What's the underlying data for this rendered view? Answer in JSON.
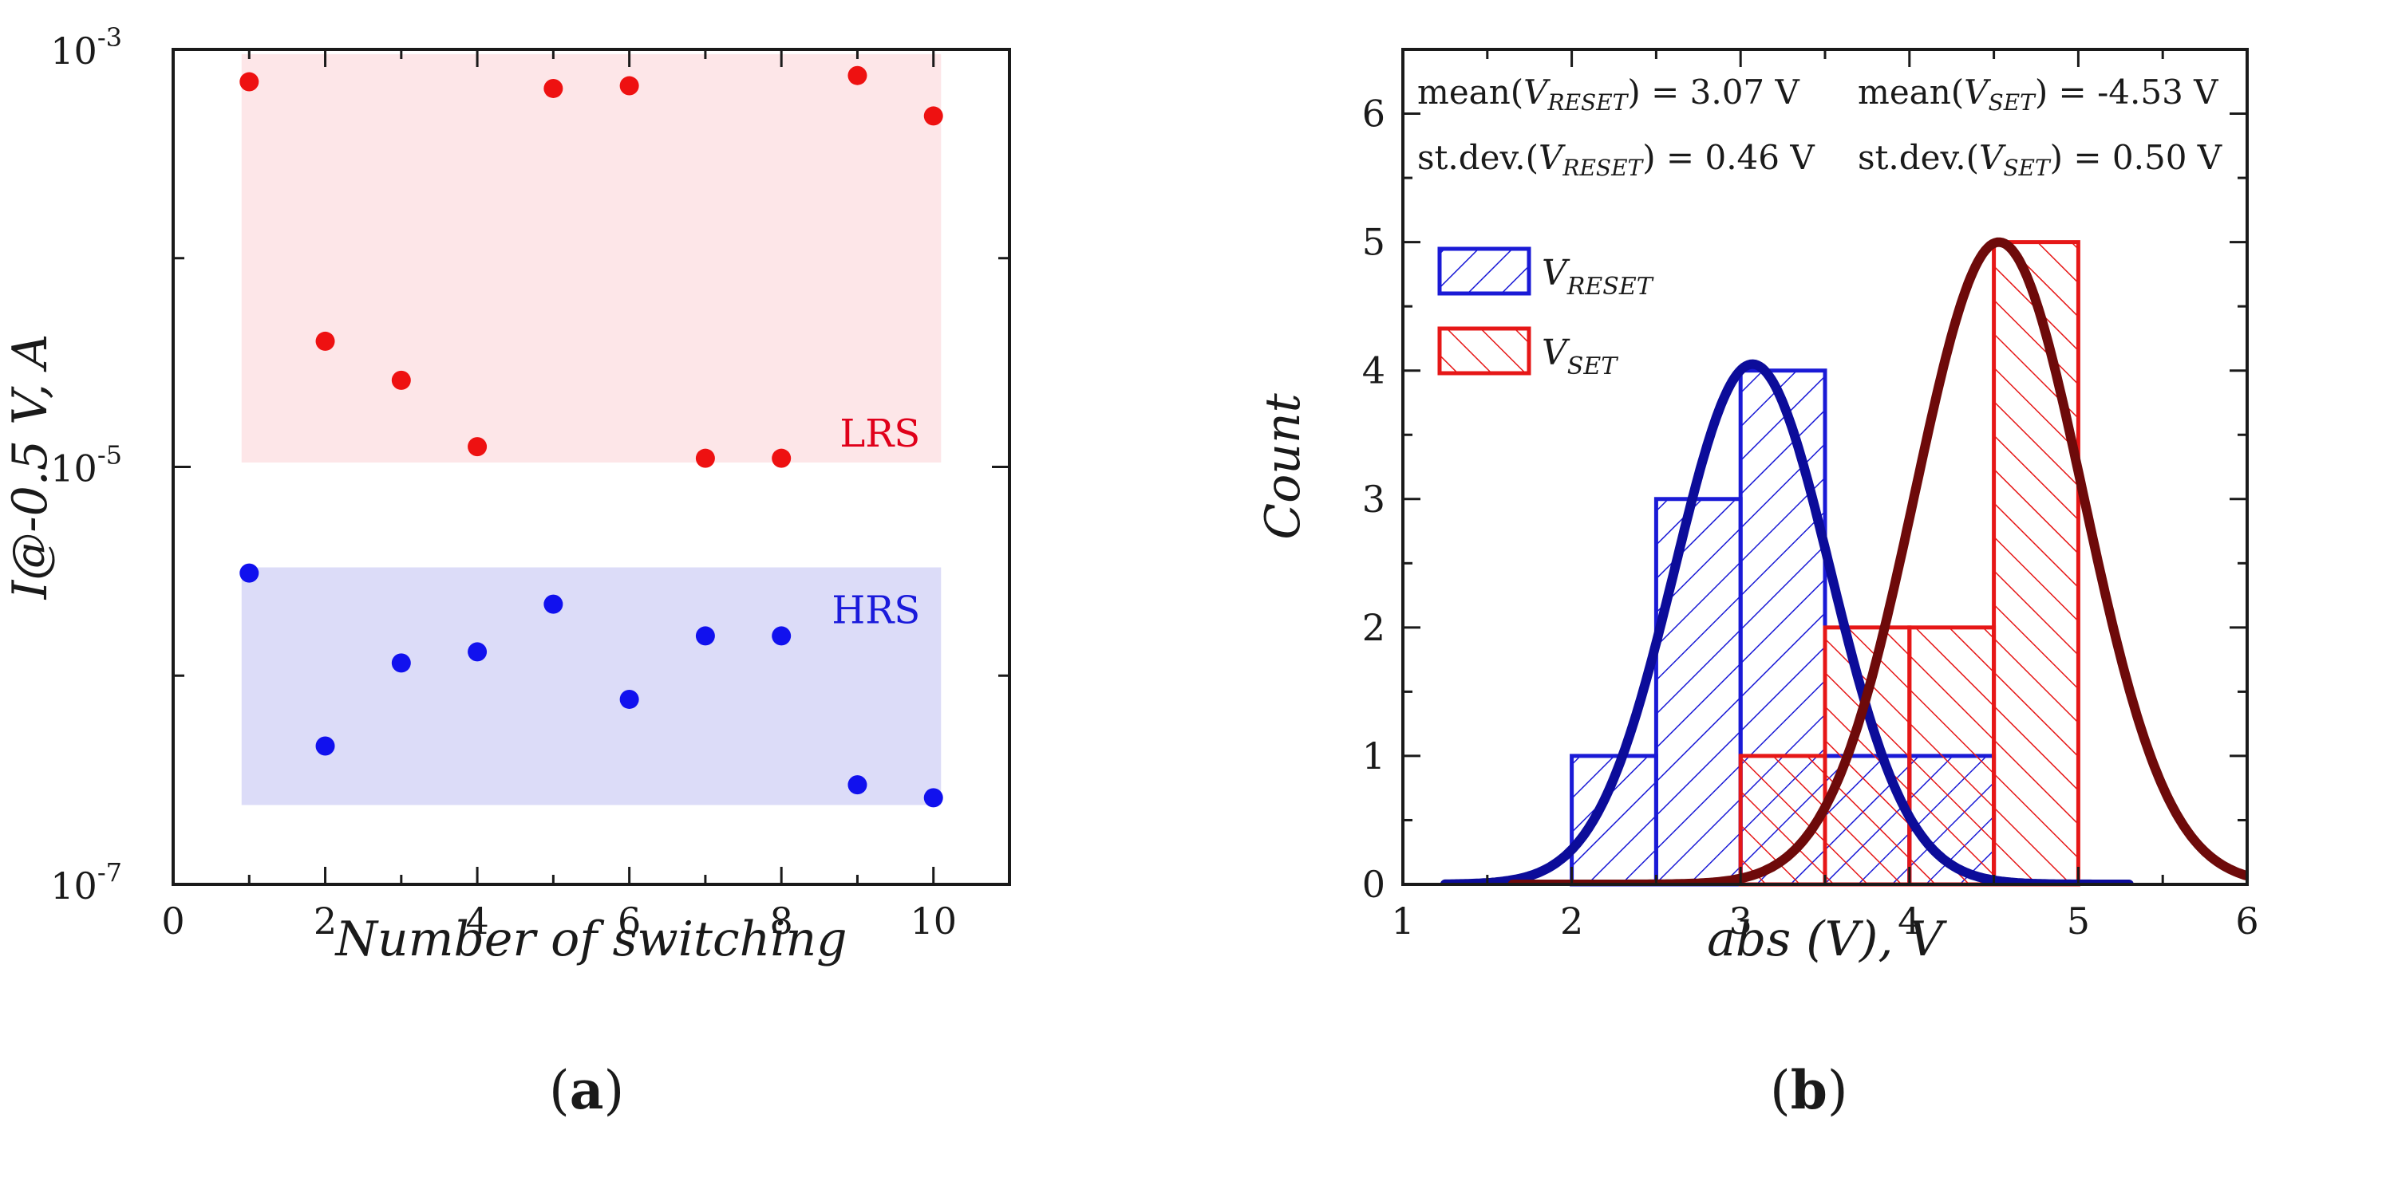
{
  "chart_data": [
    {
      "type": "scatter",
      "panel_label": "(a)",
      "panel_letter": "a",
      "xlabel": "Number of switching",
      "ylabel": "I@-0.5 V, A",
      "yscale": "log",
      "xlim": [
        0,
        11
      ],
      "ylim": [
        1e-07,
        0.001
      ],
      "xticks": [
        0,
        2,
        4,
        6,
        8,
        10
      ],
      "yticks": [
        {
          "value": 1e-07,
          "mantissa": "10",
          "exp": "-7"
        },
        {
          "value": 1e-05,
          "mantissa": "10",
          "exp": "-5"
        },
        {
          "value": 0.001,
          "mantissa": "10",
          "exp": "-3"
        }
      ],
      "bands": [
        {
          "name": "LRS",
          "x_range": [
            0.9,
            10.1
          ],
          "y_range": [
            1.05e-05,
            0.00095
          ],
          "color": "#fde6e8",
          "label_color": "#e0001a"
        },
        {
          "name": "HRS",
          "x_range": [
            0.9,
            10.1
          ],
          "y_range": [
            2.4e-07,
            3.3e-06
          ],
          "color": "#dcdcf8",
          "label_color": "#1a1adb"
        }
      ],
      "series": [
        {
          "name": "LRS",
          "color": "#ee1111",
          "x": [
            1,
            2,
            3,
            4,
            5,
            6,
            7,
            8,
            9,
            10
          ],
          "y": [
            0.0007,
            4e-05,
            2.6e-05,
            1.25e-05,
            0.00065,
            0.00067,
            1.1e-05,
            1.1e-05,
            0.00075,
            0.00048
          ]
        },
        {
          "name": "HRS",
          "color": "#1111ee",
          "x": [
            1,
            2,
            3,
            4,
            5,
            6,
            7,
            8,
            9,
            10
          ],
          "y": [
            3.1e-06,
            4.6e-07,
            1.15e-06,
            1.3e-06,
            2.2e-06,
            7.7e-07,
            1.55e-06,
            1.55e-06,
            3e-07,
            2.6e-07
          ]
        }
      ]
    },
    {
      "type": "bar",
      "subtype": "histogram_with_gaussian_fits",
      "panel_label": "(b)",
      "panel_letter": "b",
      "xlabel": "abs (V), V",
      "ylabel": "Count",
      "xlim": [
        1,
        6
      ],
      "ylim": [
        0,
        6.5
      ],
      "xticks": [
        1,
        2,
        3,
        4,
        5,
        6
      ],
      "yticks": [
        0,
        1,
        2,
        3,
        4,
        5,
        6
      ],
      "bin_width": 0.5,
      "series": [
        {
          "name": "V_RESET",
          "legend_main": "V",
          "legend_sub": "RESET",
          "color": "#1a1ad6",
          "bin_starts": [
            2.0,
            2.5,
            3.0,
            3.5,
            4.0
          ],
          "counts": [
            1,
            3,
            4,
            1,
            1
          ],
          "fit": {
            "mean": 3.07,
            "sd": 0.46,
            "peak": 4.05,
            "color": "#0c0c9a"
          }
        },
        {
          "name": "V_SET",
          "legend_main": "V",
          "legend_sub": "SET",
          "color": "#e61717",
          "bin_starts": [
            3.0,
            3.5,
            4.0,
            4.5
          ],
          "counts": [
            1,
            2,
            2,
            5
          ],
          "fit": {
            "mean": 4.53,
            "sd": 0.5,
            "peak": 5.0,
            "color": "#6e0a0a"
          }
        }
      ],
      "annotations": {
        "mean_reset": {
          "pre": "mean(",
          "var": "V",
          "sub": "RESET",
          "post": ") = 3.07 V"
        },
        "sd_reset": {
          "pre": "st.dev.(",
          "var": "V",
          "sub": "RESET",
          "post": ") = 0.46 V"
        },
        "mean_set": {
          "pre": "mean(",
          "var": "V",
          "sub": "SET",
          "post": ") = -4.53 V"
        },
        "sd_set": {
          "pre": "st.dev.(",
          "var": "V",
          "sub": "SET",
          "post": ") = 0.50 V"
        }
      }
    }
  ]
}
